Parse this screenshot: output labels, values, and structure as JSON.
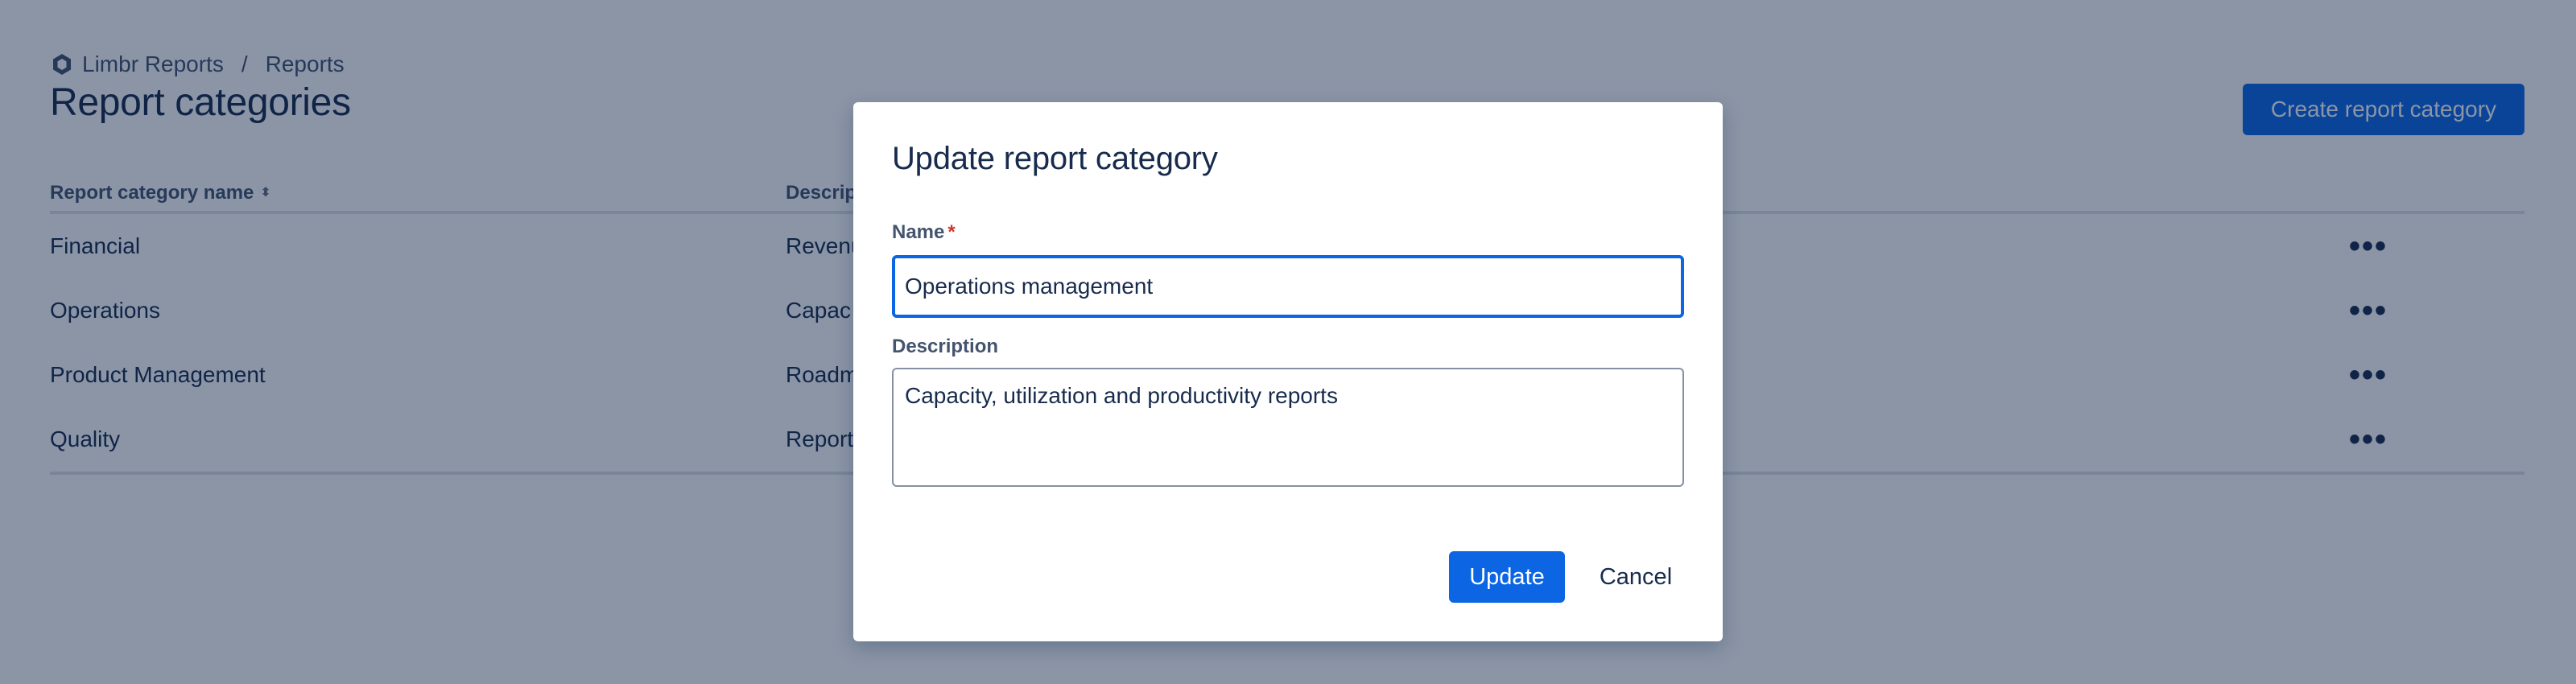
{
  "breadcrumb": {
    "icon": "limbr-logo-icon",
    "items": [
      "Limbr Reports",
      "Reports"
    ],
    "separator": "/"
  },
  "page": {
    "title": "Report categories",
    "create_button": "Create report category"
  },
  "table": {
    "columns": [
      "Report category name",
      "Descrip"
    ],
    "sort_icon": "sort-icon",
    "rows": [
      {
        "name": "Financial",
        "description": "Revenu",
        "actions": "•••"
      },
      {
        "name": "Operations",
        "description": "Capac",
        "actions": "•••"
      },
      {
        "name": "Product Management",
        "description": "Roadm",
        "actions": "•••"
      },
      {
        "name": "Quality",
        "description": "Report",
        "actions": "•••"
      }
    ]
  },
  "modal": {
    "title": "Update report category",
    "name_label": "Name",
    "required_marker": "*",
    "name_value": "Operations management",
    "description_label": "Description",
    "description_value": "Capacity, utilization and productivity reports",
    "update_button": "Update",
    "cancel_button": "Cancel"
  },
  "colors": {
    "primary": "#0c66e4",
    "text": "#172b4d",
    "subtle_text": "#44546f",
    "required": "#c9372c",
    "overlay": "rgba(9, 30, 66, 0.47)"
  }
}
